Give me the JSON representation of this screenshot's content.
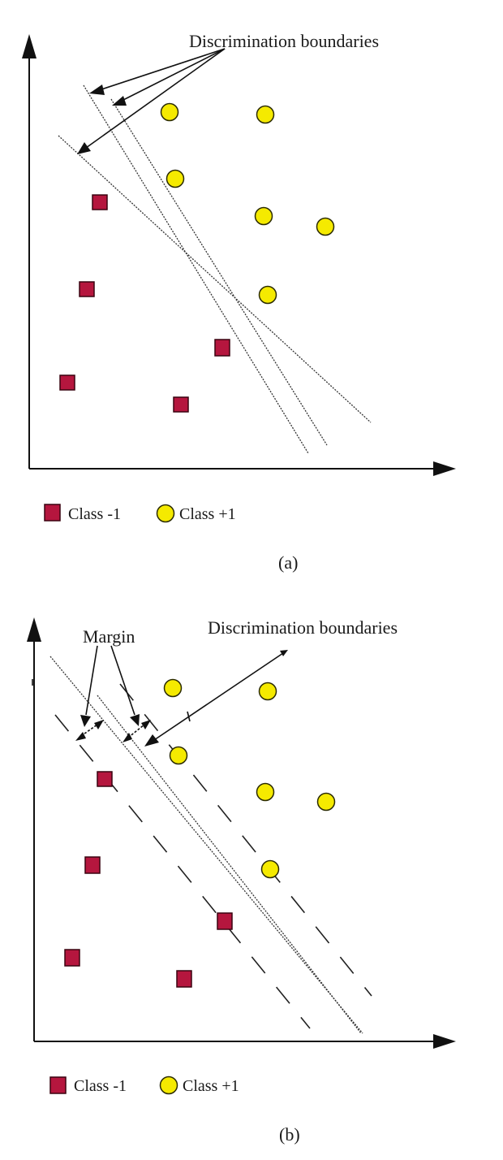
{
  "panel_a": {
    "annotation": "Discrimination boundaries",
    "legend_neg": "Class -1",
    "legend_pos": "Class +1",
    "caption": "(a)"
  },
  "panel_b": {
    "annotation_margin": "Margin",
    "annotation": "Discrimination boundaries",
    "legend_neg": "Class -1",
    "legend_pos": "Class +1",
    "caption": "(b)"
  },
  "colors": {
    "class_neg": "#b5163e",
    "class_pos": "#f5ea00"
  }
}
